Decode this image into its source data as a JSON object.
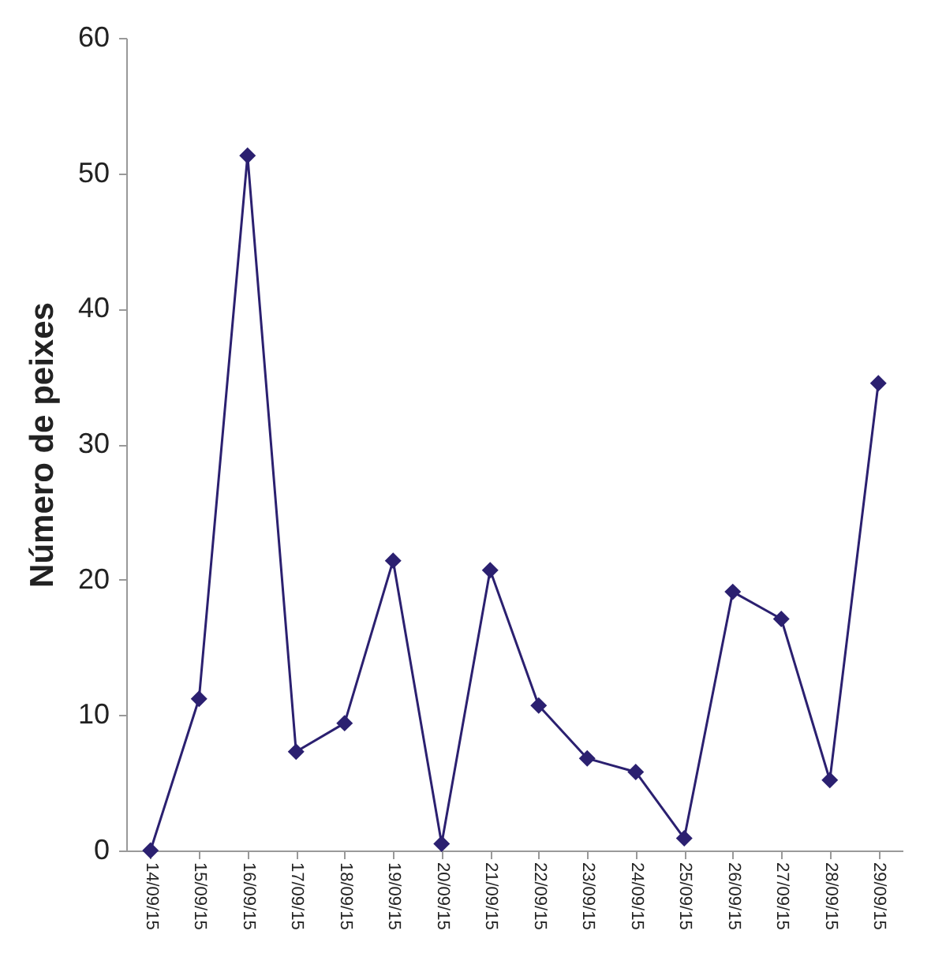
{
  "chart_data": {
    "type": "line",
    "ylabel": "Número de peixes",
    "categories": [
      "14/09/15",
      "15/09/15",
      "16/09/15",
      "17/09/15",
      "18/09/15",
      "19/09/15",
      "20/09/15",
      "21/09/15",
      "22/09/15",
      "23/09/15",
      "24/09/15",
      "25/09/15",
      "26/09/15",
      "27/09/15",
      "28/09/15",
      "29/09/15"
    ],
    "series": [
      {
        "color": "#2b2070",
        "values": [
          0,
          11.2,
          51.3,
          7.3,
          9.4,
          21.4,
          0.5,
          20.7,
          10.7,
          6.8,
          5.8,
          0.9,
          19.1,
          17.1,
          5.2,
          34.5
        ]
      }
    ],
    "ylim": [
      0,
      60
    ],
    "yticks": [
      0,
      10,
      20,
      30,
      40,
      50,
      60
    ],
    "grid": false,
    "marker": "diamond",
    "line_style": "solid"
  }
}
